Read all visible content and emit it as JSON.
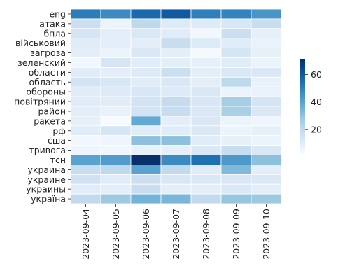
{
  "chart_data": {
    "type": "heatmap",
    "title": "",
    "xlabel": "",
    "ylabel": "",
    "x": [
      "2023-09-04",
      "2023-09-05",
      "2023-09-06",
      "2023-09-07",
      "2023-09-08",
      "2023-09-09",
      "2023-09-10"
    ],
    "y": [
      "eng",
      "атака",
      "бпла",
      "військовий",
      "загроза",
      "зеленский",
      "области",
      "область",
      "обороны",
      "повітряний",
      "район",
      "ракета",
      "рф",
      "сша",
      "тривога",
      "тсн",
      "украина",
      "украине",
      "украины",
      "україна"
    ],
    "values": [
      [
        51,
        47,
        56,
        60,
        50,
        49,
        44
      ],
      [
        17,
        6,
        21,
        11,
        11,
        13,
        18
      ],
      [
        14,
        9,
        12,
        10,
        4,
        17,
        8
      ],
      [
        10,
        9,
        9,
        18,
        11,
        10,
        7
      ],
      [
        9,
        6,
        12,
        9,
        3,
        14,
        8
      ],
      [
        4,
        14,
        10,
        9,
        8,
        10,
        6
      ],
      [
        10,
        9,
        11,
        17,
        9,
        12,
        12
      ],
      [
        15,
        13,
        10,
        12,
        9,
        21,
        7
      ],
      [
        10,
        11,
        13,
        11,
        12,
        6,
        7
      ],
      [
        10,
        10,
        15,
        19,
        13,
        26,
        14
      ],
      [
        9,
        7,
        15,
        18,
        12,
        25,
        12
      ],
      [
        8,
        2,
        38,
        9,
        12,
        6,
        5
      ],
      [
        10,
        14,
        10,
        10,
        12,
        6,
        8
      ],
      [
        4,
        5,
        31,
        31,
        10,
        8,
        6
      ],
      [
        5,
        4,
        7,
        8,
        12,
        18,
        12
      ],
      [
        40,
        42,
        71,
        47,
        54,
        43,
        31
      ],
      [
        18,
        21,
        40,
        20,
        10,
        33,
        9
      ],
      [
        16,
        10,
        17,
        13,
        12,
        13,
        12
      ],
      [
        10,
        9,
        18,
        9,
        9,
        12,
        9
      ],
      [
        20,
        28,
        35,
        34,
        20,
        29,
        28
      ]
    ],
    "colorbar": {
      "min": 2,
      "max": 71,
      "ticks": [
        20,
        40,
        60
      ],
      "colormap": "Blues"
    },
    "grid": false,
    "legend": "colorbar-right"
  }
}
